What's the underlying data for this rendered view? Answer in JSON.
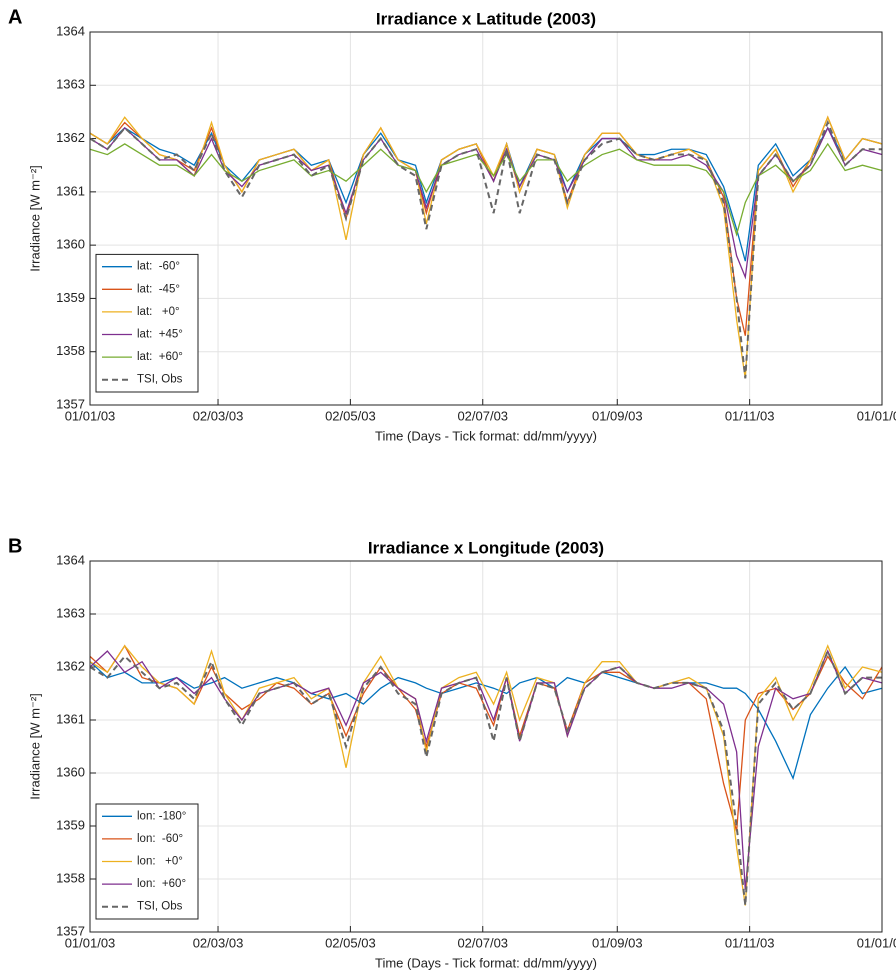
{
  "chart_data": [
    {
      "type": "line",
      "panel": "A",
      "title": "Irradiance x Latitude (2003)",
      "ylabel": "Irradiance [W m⁻²]",
      "xlabel": "Time (Days - Tick format: dd/mm/yyyy)",
      "xlim": [
        0,
        365
      ],
      "xticks": [
        {
          "value": 0,
          "label": "01/01/03"
        },
        {
          "value": 59,
          "label": "02/03/03"
        },
        {
          "value": 120,
          "label": "02/05/03"
        },
        {
          "value": 181,
          "label": "02/07/03"
        },
        {
          "value": 243,
          "label": "01/09/03"
        },
        {
          "value": 304,
          "label": "01/11/03"
        },
        {
          "value": 365,
          "label": "01/01/04"
        }
      ],
      "ylim": [
        1357,
        1364
      ],
      "yticks": [
        1357,
        1358,
        1359,
        1360,
        1361,
        1362,
        1363,
        1364
      ],
      "grid": true,
      "legend": "lower-left",
      "x": [
        0,
        8,
        16,
        24,
        32,
        40,
        48,
        56,
        62,
        70,
        78,
        86,
        94,
        102,
        110,
        118,
        126,
        134,
        142,
        150,
        155,
        162,
        170,
        178,
        186,
        192,
        198,
        206,
        214,
        220,
        228,
        236,
        244,
        252,
        260,
        268,
        276,
        284,
        292,
        298,
        302,
        308,
        316,
        324,
        332,
        340,
        348,
        356,
        365
      ],
      "series": [
        {
          "name": "lat:  -60°",
          "color": "#0072bd",
          "values": [
            1362.1,
            1361.9,
            1362.2,
            1362.0,
            1361.8,
            1361.7,
            1361.5,
            1362.1,
            1361.5,
            1361.2,
            1361.6,
            1361.7,
            1361.8,
            1361.5,
            1361.6,
            1360.8,
            1361.7,
            1362.1,
            1361.6,
            1361.5,
            1360.8,
            1361.6,
            1361.8,
            1361.9,
            1361.2,
            1361.9,
            1361.1,
            1361.8,
            1361.7,
            1361.0,
            1361.7,
            1362.0,
            1362.0,
            1361.7,
            1361.7,
            1361.8,
            1361.8,
            1361.7,
            1361.1,
            1360.3,
            1359.7,
            1361.5,
            1361.9,
            1361.3,
            1361.6,
            1362.2,
            1361.6,
            1362.0,
            1361.9
          ]
        },
        {
          "name": "lat:  -45°",
          "color": "#d95319",
          "values": [
            1362.1,
            1361.9,
            1362.3,
            1362.0,
            1361.7,
            1361.6,
            1361.4,
            1362.2,
            1361.5,
            1361.0,
            1361.6,
            1361.7,
            1361.8,
            1361.4,
            1361.6,
            1360.5,
            1361.7,
            1362.2,
            1361.6,
            1361.4,
            1360.6,
            1361.6,
            1361.8,
            1361.9,
            1361.2,
            1361.9,
            1361.0,
            1361.8,
            1361.7,
            1360.8,
            1361.7,
            1362.1,
            1362.1,
            1361.7,
            1361.6,
            1361.7,
            1361.8,
            1361.6,
            1360.9,
            1359.0,
            1358.3,
            1361.4,
            1361.8,
            1361.1,
            1361.6,
            1362.4,
            1361.6,
            1362.0,
            1361.9
          ]
        },
        {
          "name": "lat:   +0°",
          "color": "#edb120",
          "values": [
            1362.1,
            1361.9,
            1362.4,
            1362.0,
            1361.7,
            1361.6,
            1361.3,
            1362.3,
            1361.5,
            1361.0,
            1361.6,
            1361.7,
            1361.8,
            1361.4,
            1361.6,
            1360.1,
            1361.7,
            1362.2,
            1361.6,
            1361.4,
            1360.4,
            1361.6,
            1361.8,
            1361.9,
            1361.3,
            1361.9,
            1361.0,
            1361.8,
            1361.7,
            1360.7,
            1361.7,
            1362.1,
            1362.1,
            1361.7,
            1361.6,
            1361.7,
            1361.8,
            1361.6,
            1360.7,
            1358.6,
            1357.5,
            1361.4,
            1361.8,
            1361.0,
            1361.6,
            1362.4,
            1361.6,
            1362.0,
            1361.9
          ]
        },
        {
          "name": "lat:  +45°",
          "color": "#7e2f8e",
          "values": [
            1362.0,
            1361.8,
            1362.2,
            1361.9,
            1361.6,
            1361.6,
            1361.3,
            1362.0,
            1361.4,
            1361.1,
            1361.5,
            1361.6,
            1361.7,
            1361.4,
            1361.5,
            1360.6,
            1361.6,
            1362.0,
            1361.5,
            1361.4,
            1360.7,
            1361.5,
            1361.7,
            1361.8,
            1361.2,
            1361.8,
            1361.1,
            1361.7,
            1361.6,
            1361.0,
            1361.6,
            1362.0,
            1362.0,
            1361.6,
            1361.6,
            1361.6,
            1361.7,
            1361.5,
            1361.0,
            1359.8,
            1359.4,
            1361.3,
            1361.7,
            1361.2,
            1361.5,
            1362.2,
            1361.5,
            1361.8,
            1361.7
          ]
        },
        {
          "name": "lat:  +60°",
          "color": "#77ac30",
          "values": [
            1361.8,
            1361.7,
            1361.9,
            1361.7,
            1361.5,
            1361.5,
            1361.3,
            1361.7,
            1361.4,
            1361.2,
            1361.4,
            1361.5,
            1361.6,
            1361.3,
            1361.4,
            1361.2,
            1361.5,
            1361.8,
            1361.5,
            1361.4,
            1361.0,
            1361.5,
            1361.6,
            1361.7,
            1361.3,
            1361.7,
            1361.2,
            1361.6,
            1361.6,
            1361.2,
            1361.5,
            1361.7,
            1361.8,
            1361.6,
            1361.5,
            1361.5,
            1361.5,
            1361.4,
            1361.0,
            1360.2,
            1360.8,
            1361.3,
            1361.5,
            1361.2,
            1361.4,
            1361.9,
            1361.4,
            1361.5,
            1361.4
          ]
        },
        {
          "name": "TSI, Obs",
          "color": "#666666",
          "dashed": true,
          "values": [
            1362.0,
            1361.8,
            1362.2,
            1361.9,
            1361.6,
            1361.7,
            1361.4,
            1362.1,
            1361.4,
            1360.9,
            1361.5,
            1361.6,
            1361.7,
            1361.3,
            1361.5,
            1360.5,
            1361.6,
            1362.0,
            1361.5,
            1361.3,
            1360.3,
            1361.5,
            1361.7,
            1361.8,
            1360.6,
            1361.8,
            1360.6,
            1361.7,
            1361.6,
            1360.8,
            1361.6,
            1361.9,
            1362.0,
            1361.7,
            1361.6,
            1361.7,
            1361.7,
            1361.6,
            1360.8,
            1359.0,
            1357.5,
            1361.3,
            1361.7,
            1361.2,
            1361.5,
            1362.3,
            1361.5,
            1361.8,
            1361.8
          ]
        }
      ]
    },
    {
      "type": "line",
      "panel": "B",
      "title": "Irradiance x Longitude (2003)",
      "ylabel": "Irradiance [W m⁻²]",
      "xlabel": "Time (Days - Tick format: dd/mm/yyyy)",
      "xlim": [
        0,
        365
      ],
      "xticks": [
        {
          "value": 0,
          "label": "01/01/03"
        },
        {
          "value": 59,
          "label": "02/03/03"
        },
        {
          "value": 120,
          "label": "02/05/03"
        },
        {
          "value": 181,
          "label": "02/07/03"
        },
        {
          "value": 243,
          "label": "01/09/03"
        },
        {
          "value": 304,
          "label": "01/11/03"
        },
        {
          "value": 365,
          "label": "01/01/04"
        }
      ],
      "ylim": [
        1357,
        1364
      ],
      "yticks": [
        1357,
        1358,
        1359,
        1360,
        1361,
        1362,
        1363,
        1364
      ],
      "grid": true,
      "legend": "lower-left",
      "x": [
        0,
        8,
        16,
        24,
        32,
        40,
        48,
        56,
        62,
        70,
        78,
        86,
        94,
        102,
        110,
        118,
        126,
        134,
        142,
        150,
        155,
        162,
        170,
        178,
        186,
        192,
        198,
        206,
        214,
        220,
        228,
        236,
        244,
        252,
        260,
        268,
        276,
        284,
        292,
        298,
        302,
        308,
        316,
        324,
        332,
        340,
        348,
        356,
        365
      ],
      "series": [
        {
          "name": "lon: -180°",
          "color": "#0072bd",
          "values": [
            1362.1,
            1361.8,
            1361.9,
            1361.7,
            1361.7,
            1361.8,
            1361.6,
            1361.7,
            1361.8,
            1361.6,
            1361.7,
            1361.8,
            1361.7,
            1361.5,
            1361.4,
            1361.5,
            1361.3,
            1361.6,
            1361.8,
            1361.7,
            1361.6,
            1361.5,
            1361.6,
            1361.7,
            1361.6,
            1361.5,
            1361.7,
            1361.8,
            1361.6,
            1361.8,
            1361.7,
            1361.9,
            1361.8,
            1361.7,
            1361.6,
            1361.7,
            1361.7,
            1361.7,
            1361.6,
            1361.6,
            1361.5,
            1361.2,
            1360.6,
            1359.9,
            1361.1,
            1361.6,
            1362.0,
            1361.5,
            1361.6
          ]
        },
        {
          "name": "lon:  -60°",
          "color": "#d95319",
          "values": [
            1362.2,
            1361.9,
            1362.4,
            1361.8,
            1361.7,
            1361.6,
            1361.3,
            1362.0,
            1361.5,
            1361.2,
            1361.4,
            1361.7,
            1361.6,
            1361.3,
            1361.5,
            1360.7,
            1361.5,
            1362.0,
            1361.6,
            1361.2,
            1360.5,
            1361.5,
            1361.7,
            1361.6,
            1360.9,
            1361.8,
            1360.7,
            1361.7,
            1361.6,
            1360.8,
            1361.7,
            1361.9,
            1361.9,
            1361.7,
            1361.6,
            1361.7,
            1361.7,
            1361.4,
            1359.8,
            1358.9,
            1361.0,
            1361.5,
            1361.6,
            1361.2,
            1361.5,
            1362.2,
            1361.7,
            1361.4,
            1362.0
          ]
        },
        {
          "name": "lon:   +0°",
          "color": "#edb120",
          "values": [
            1362.1,
            1361.9,
            1362.4,
            1362.0,
            1361.7,
            1361.6,
            1361.3,
            1362.3,
            1361.5,
            1361.0,
            1361.6,
            1361.7,
            1361.8,
            1361.4,
            1361.6,
            1360.1,
            1361.7,
            1362.2,
            1361.6,
            1361.4,
            1360.4,
            1361.6,
            1361.8,
            1361.9,
            1361.3,
            1361.9,
            1361.0,
            1361.8,
            1361.7,
            1360.7,
            1361.7,
            1362.1,
            1362.1,
            1361.7,
            1361.6,
            1361.7,
            1361.8,
            1361.6,
            1360.7,
            1358.6,
            1357.5,
            1361.4,
            1361.8,
            1361.0,
            1361.6,
            1362.4,
            1361.6,
            1362.0,
            1361.9
          ]
        },
        {
          "name": "lon:  +60°",
          "color": "#7e2f8e",
          "values": [
            1362.0,
            1362.3,
            1361.9,
            1362.1,
            1361.6,
            1361.8,
            1361.5,
            1361.8,
            1361.4,
            1361.0,
            1361.5,
            1361.6,
            1361.7,
            1361.5,
            1361.6,
            1360.9,
            1361.7,
            1361.9,
            1361.6,
            1361.4,
            1360.6,
            1361.6,
            1361.7,
            1361.8,
            1361.0,
            1361.8,
            1360.6,
            1361.7,
            1361.7,
            1360.7,
            1361.6,
            1361.9,
            1362.0,
            1361.7,
            1361.6,
            1361.6,
            1361.7,
            1361.6,
            1361.3,
            1360.4,
            1357.8,
            1360.5,
            1361.6,
            1361.4,
            1361.5,
            1362.3,
            1361.5,
            1361.8,
            1361.7
          ]
        },
        {
          "name": "TSI, Obs",
          "color": "#666666",
          "dashed": true,
          "values": [
            1362.0,
            1361.8,
            1362.2,
            1361.9,
            1361.6,
            1361.7,
            1361.4,
            1362.1,
            1361.4,
            1360.9,
            1361.5,
            1361.6,
            1361.7,
            1361.3,
            1361.5,
            1360.5,
            1361.6,
            1362.0,
            1361.5,
            1361.3,
            1360.3,
            1361.5,
            1361.7,
            1361.8,
            1360.6,
            1361.8,
            1360.6,
            1361.7,
            1361.6,
            1360.8,
            1361.6,
            1361.9,
            1362.0,
            1361.7,
            1361.6,
            1361.7,
            1361.7,
            1361.6,
            1360.8,
            1359.0,
            1357.5,
            1361.3,
            1361.7,
            1361.2,
            1361.5,
            1362.3,
            1361.5,
            1361.8,
            1361.8
          ]
        }
      ]
    }
  ]
}
